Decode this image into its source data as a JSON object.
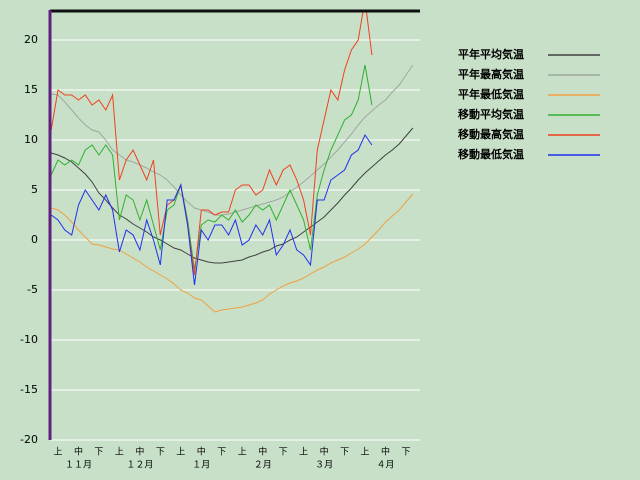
{
  "chart_data": {
    "type": "line",
    "ylim": [
      -20,
      23
    ],
    "yticks": [
      -20,
      -15,
      -10,
      -5,
      0,
      5,
      10,
      15,
      20
    ],
    "grid": true,
    "categories": [
      null,
      "上",
      null,
      null,
      "中",
      null,
      null,
      "下",
      null,
      null,
      "上",
      null,
      null,
      "中",
      null,
      null,
      "下",
      null,
      null,
      "上",
      null,
      null,
      "中",
      null,
      null,
      "下",
      null,
      null,
      "上",
      null,
      null,
      "中",
      null,
      null,
      "下",
      null,
      null,
      "上",
      null,
      null,
      "中",
      null,
      null,
      "下",
      null,
      null,
      "上",
      null,
      null,
      "中",
      null,
      null,
      "下",
      null
    ],
    "months": [
      "１１月",
      "１２月",
      "１月",
      "２月",
      "３月",
      "４月"
    ],
    "series": [
      {
        "name": "平年平均気温",
        "color": "#404040",
        "values": [
          8.7,
          8.5,
          8.2,
          7.8,
          7.2,
          6.6,
          5.8,
          4.7,
          4.0,
          3.2,
          2.5,
          2.1,
          1.6,
          1.2,
          0.8,
          0.3,
          0,
          -0.4,
          -0.8,
          -1.0,
          -1.4,
          -1.8,
          -2.0,
          -2.2,
          -2.3,
          -2.3,
          -2.2,
          -2.1,
          -2.0,
          -1.7,
          -1.5,
          -1.2,
          -1.0,
          -0.6,
          -0.4,
          0,
          0.3,
          0.8,
          1.3,
          1.8,
          2.3,
          3.0,
          3.7,
          4.5,
          5.2,
          6.0,
          6.7,
          7.3,
          7.9,
          8.5,
          9.0,
          9.6,
          10.4,
          11.2
        ]
      },
      {
        "name": "平年最高気温",
        "color": "#a0a8a0",
        "values": [
          14.6,
          14.5,
          13.8,
          13.0,
          12.2,
          11.5,
          11.0,
          10.8,
          10.0,
          9.0,
          8.5,
          8.0,
          7.8,
          7.5,
          7.2,
          6.8,
          6.5,
          6.0,
          5.3,
          4.5,
          3.8,
          3.2,
          3.0,
          2.8,
          2.5,
          2.5,
          2.6,
          2.8,
          3.0,
          3.2,
          3.4,
          3.6,
          3.8,
          4.0,
          4.3,
          4.8,
          5.3,
          5.8,
          6.4,
          7.0,
          7.6,
          8.3,
          9.0,
          9.8,
          10.6,
          11.5,
          12.3,
          12.9,
          13.5,
          14.0,
          14.8,
          15.5,
          16.5,
          17.5
        ]
      },
      {
        "name": "平年最低気温",
        "color": "#f0a040",
        "values": [
          3.2,
          3.0,
          2.5,
          1.8,
          1.0,
          0.3,
          -0.4,
          -0.5,
          -0.7,
          -0.9,
          -1.0,
          -1.4,
          -1.8,
          -2.2,
          -2.7,
          -3.1,
          -3.5,
          -3.9,
          -4.4,
          -5.0,
          -5.3,
          -5.8,
          -6.0,
          -6.6,
          -7.2,
          -7.0,
          -6.9,
          -6.8,
          -6.7,
          -6.5,
          -6.3,
          -6.0,
          -5.4,
          -5.0,
          -4.6,
          -4.3,
          -4.1,
          -3.8,
          -3.4,
          -3.0,
          -2.7,
          -2.3,
          -2.0,
          -1.7,
          -1.3,
          -0.9,
          -0.4,
          0.3,
          1.0,
          1.8,
          2.4,
          3.0,
          3.8,
          4.6
        ]
      },
      {
        "name": "移動平均気温",
        "color": "#30b030",
        "values": [
          6.5,
          8.0,
          7.5,
          8.0,
          7.5,
          9.0,
          9.5,
          8.5,
          9.5,
          8.5,
          2.0,
          4.5,
          4.0,
          2.0,
          4.0,
          1.5,
          -1.0,
          3.0,
          3.5,
          5.5,
          2.0,
          -3.0,
          1.5,
          2.0,
          1.8,
          2.5,
          2.0,
          3.0,
          1.8,
          2.5,
          3.5,
          3.0,
          3.5,
          2.0,
          3.5,
          5.0,
          3.5,
          2.0,
          -1.0,
          4.5,
          7.0,
          9.0,
          10.5,
          12.0,
          12.5,
          14.0,
          17.5,
          13.5,
          null,
          null,
          null,
          null,
          null,
          null
        ]
      },
      {
        "name": "移動最高気温",
        "color": "#f04020",
        "values": [
          11,
          15,
          14.5,
          14.5,
          14,
          14.5,
          13.5,
          14,
          13,
          14.5,
          6,
          8,
          9,
          7.5,
          6,
          8,
          0.5,
          3.5,
          4,
          5.5,
          1.5,
          -3.5,
          3,
          3,
          2.5,
          2.8,
          2.8,
          5,
          5.5,
          5.5,
          4.5,
          5,
          7,
          5.5,
          7,
          7.5,
          6,
          4,
          0.5,
          9,
          12,
          15,
          14,
          17,
          19,
          20,
          24,
          18.5,
          null,
          null,
          null,
          null,
          null,
          null
        ]
      },
      {
        "name": "移動最低気温",
        "color": "#2030f0",
        "values": [
          2.5,
          2,
          1,
          0.5,
          3.5,
          5,
          4,
          3,
          4.5,
          3,
          -1.2,
          1,
          0.5,
          -1,
          2,
          0,
          -2.5,
          4,
          4,
          5.5,
          1.5,
          -4.5,
          1,
          0,
          1.5,
          1.5,
          0.5,
          2,
          -0.5,
          0,
          1.5,
          0.5,
          2,
          -1.5,
          -0.5,
          1,
          -1,
          -1.5,
          -2.5,
          4,
          4,
          6,
          6.5,
          7,
          8.5,
          9,
          10.5,
          9.5,
          null,
          null,
          null,
          null,
          null,
          null
        ]
      }
    ]
  }
}
